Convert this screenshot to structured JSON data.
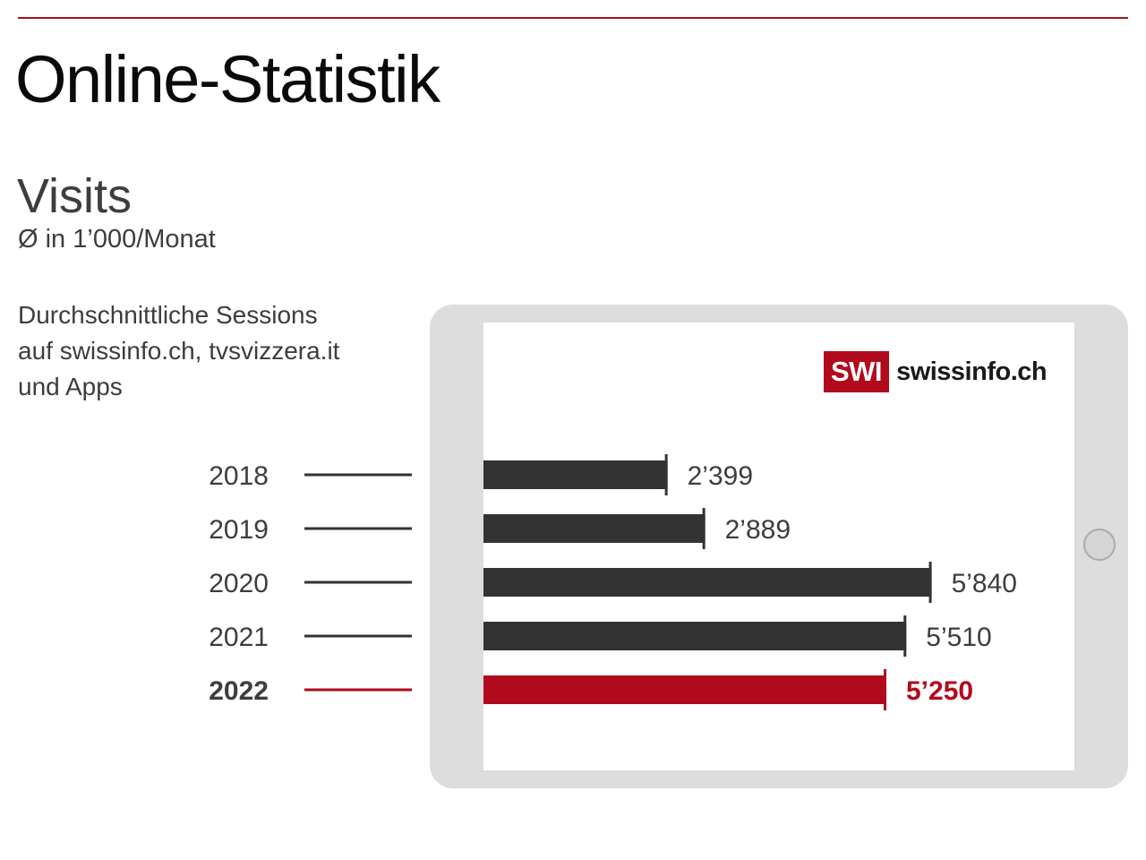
{
  "header": {
    "title": "Online-Statistik"
  },
  "metric": {
    "title": "Visits",
    "unit": "Ø in 1’000/Monat"
  },
  "description": {
    "lines": [
      "Durchschnittliche Sessions",
      "auf swissinfo.ch, tvsvizzera.it",
      "und Apps"
    ]
  },
  "logo": {
    "badge": "SWI",
    "text": "swissinfo.ch"
  },
  "colors": {
    "accent": "#b10a1c",
    "bar": "#333333",
    "tablet_frame": "#dcdddc",
    "rule": "#a5111f"
  },
  "chart_data": {
    "type": "bar",
    "orientation": "horizontal",
    "categories": [
      "2018",
      "2019",
      "2020",
      "2021",
      "2022"
    ],
    "values": [
      2399,
      2889,
      5840,
      5510,
      5250
    ],
    "value_labels": [
      "2’399",
      "2’889",
      "5’840",
      "5’510",
      "5’250"
    ],
    "highlight_category": "2022",
    "xlim": [
      0,
      6000
    ]
  }
}
